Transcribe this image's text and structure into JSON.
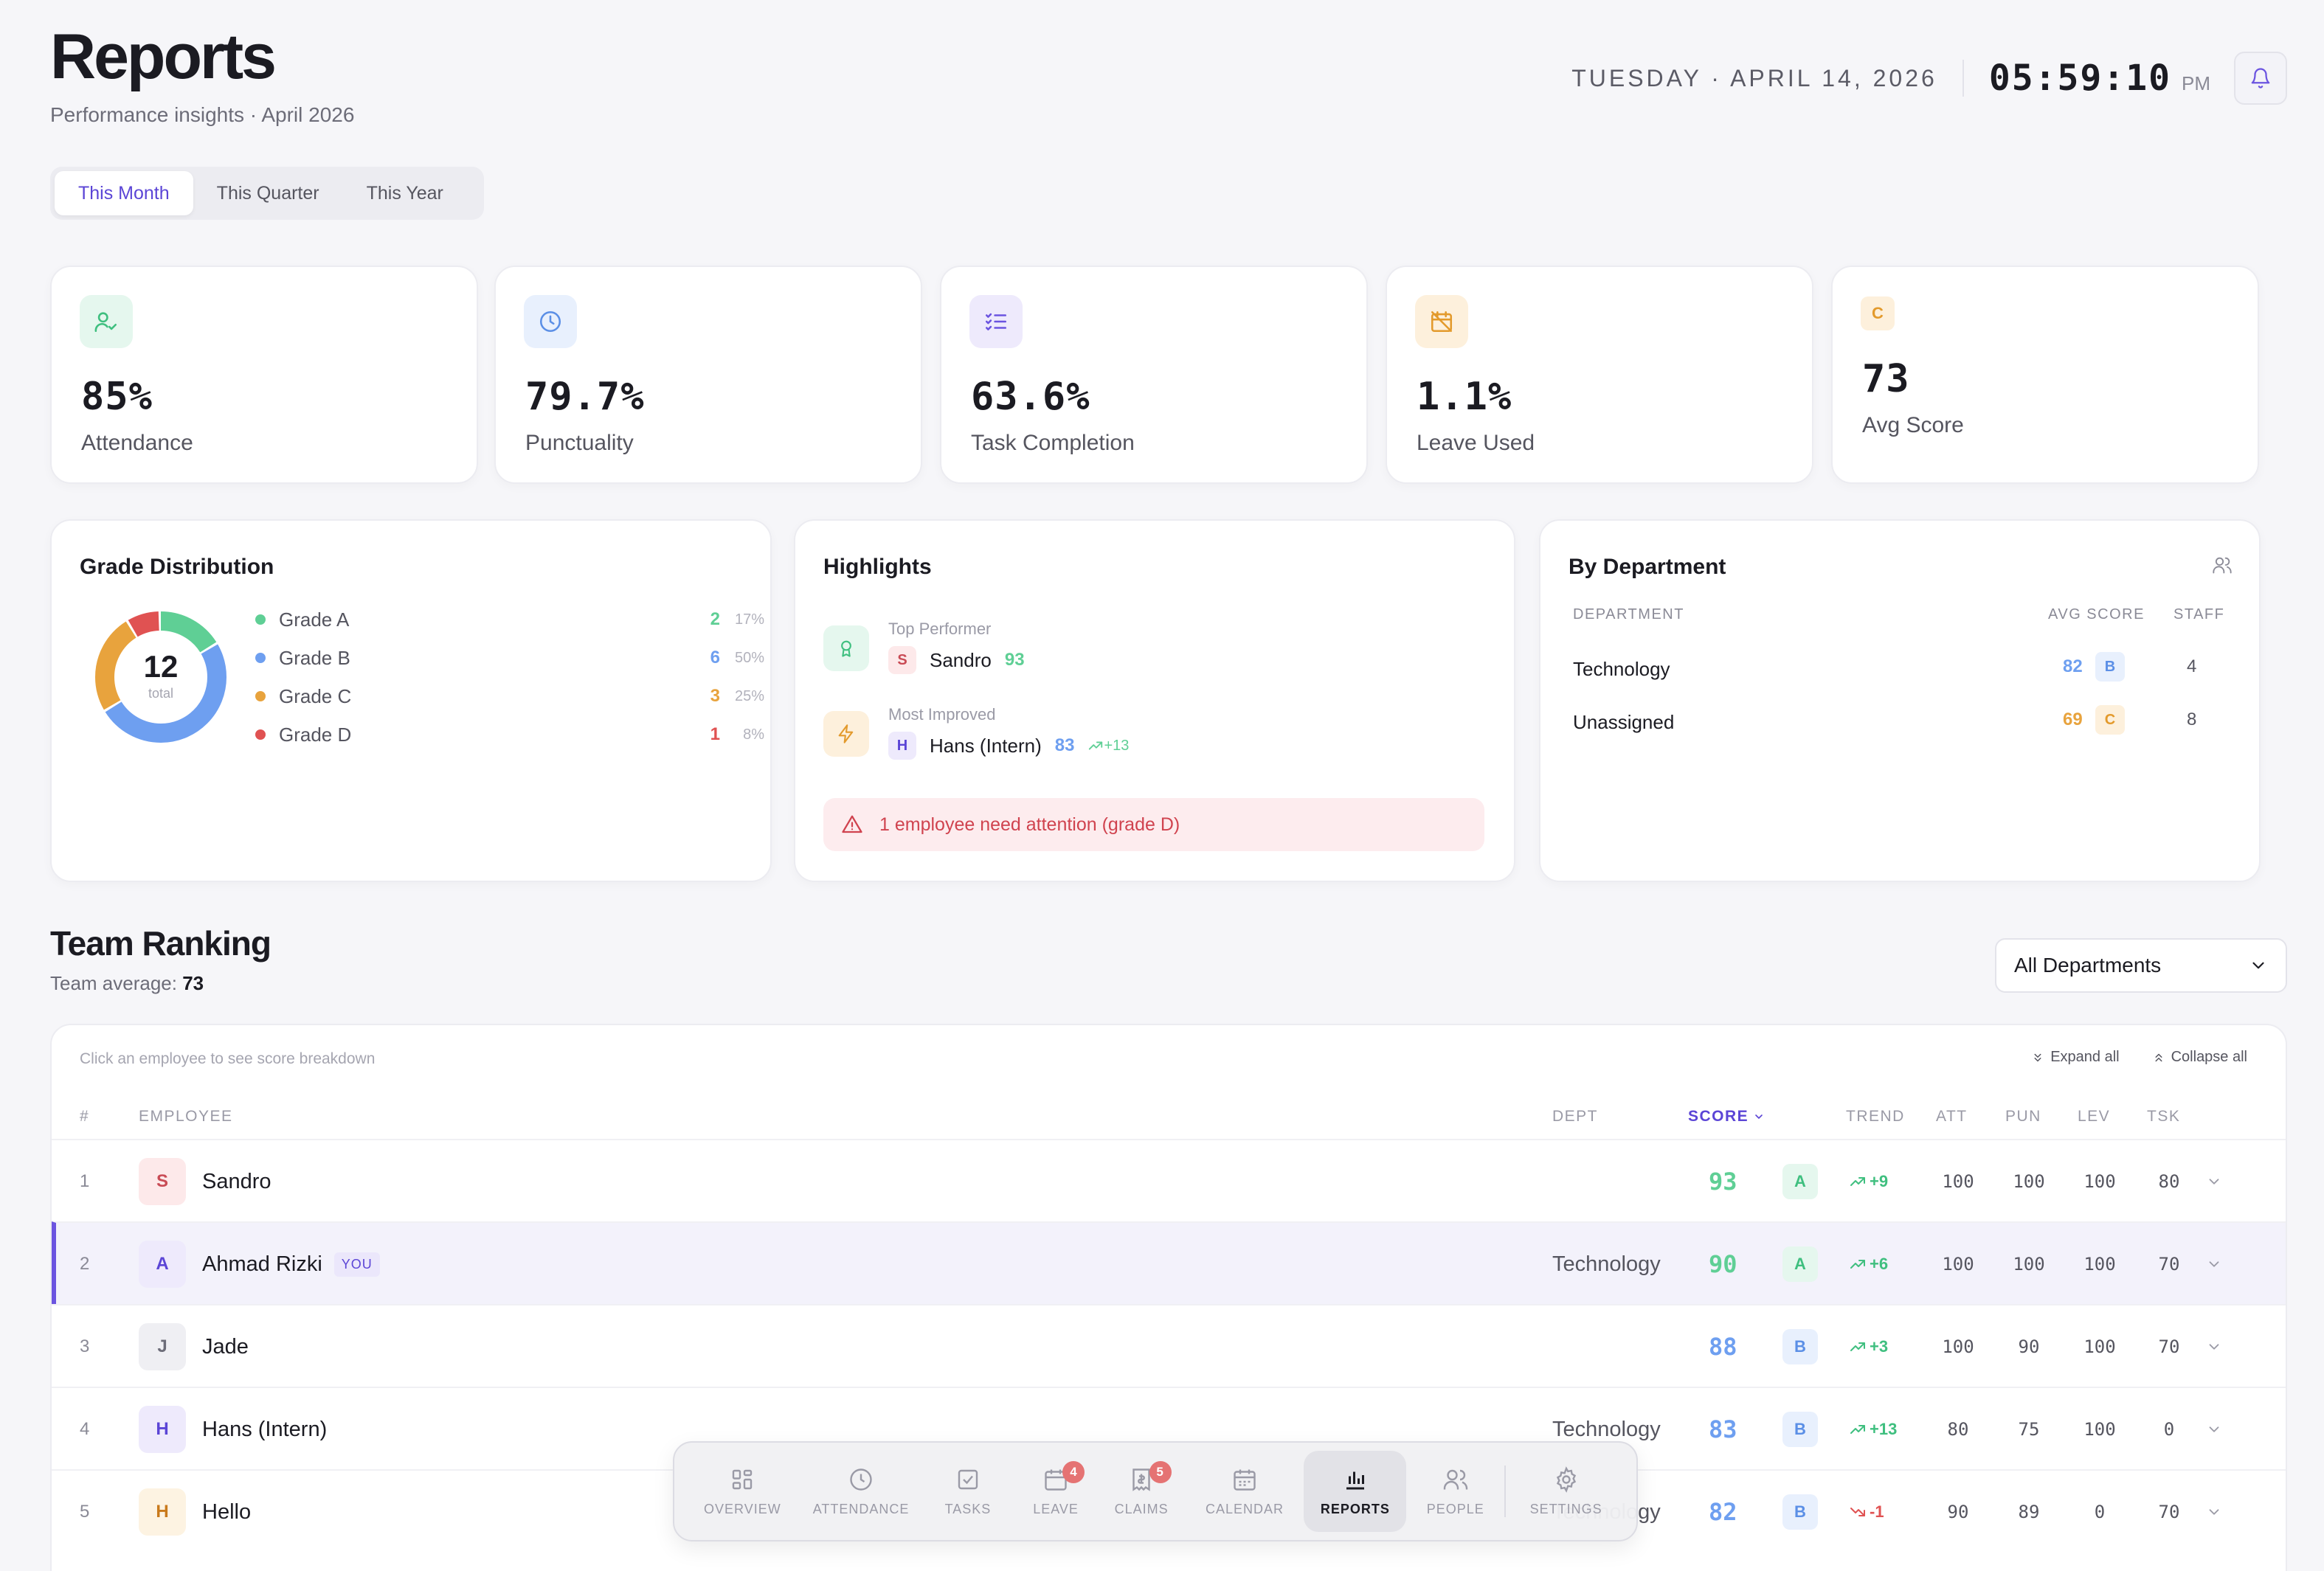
{
  "header": {
    "title": "Reports",
    "subtitle": "Performance insights · April 2026",
    "date": "TUESDAY · APRIL 14, 2026",
    "time": "05:59:10",
    "ampm": "PM"
  },
  "period_tabs": [
    {
      "label": "This Month",
      "active": true
    },
    {
      "label": "This Quarter",
      "active": false
    },
    {
      "label": "This Year",
      "active": false
    }
  ],
  "stats": [
    {
      "value": "85%",
      "label": "Attendance",
      "icon": "user-check-icon"
    },
    {
      "value": "79.7%",
      "label": "Punctuality",
      "icon": "clock-icon"
    },
    {
      "value": "63.6%",
      "label": "Task Completion",
      "icon": "list-check-icon"
    },
    {
      "value": "1.1%",
      "label": "Leave Used",
      "icon": "calendar-off-icon"
    },
    {
      "value": "73",
      "label": "Avg Score",
      "grade": "C"
    }
  ],
  "grade_distribution": {
    "title": "Grade Distribution",
    "total": "12",
    "total_label": "total",
    "grades": [
      {
        "label": "Grade A",
        "count": "2",
        "pct": "17%",
        "color": "#5fcf95"
      },
      {
        "label": "Grade B",
        "count": "6",
        "pct": "50%",
        "color": "#6e9ff0"
      },
      {
        "label": "Grade C",
        "count": "3",
        "pct": "25%",
        "color": "#e8a33d"
      },
      {
        "label": "Grade D",
        "count": "1",
        "pct": "8%",
        "color": "#e05252"
      }
    ]
  },
  "highlights": {
    "title": "Highlights",
    "top_performer": {
      "caption": "Top Performer",
      "initial": "S",
      "name": "Sandro",
      "score": "93"
    },
    "most_improved": {
      "caption": "Most Improved",
      "initial": "H",
      "name": "Hans (Intern)",
      "score": "83",
      "delta": "+13"
    },
    "alert": "1 employee need attention (grade D)"
  },
  "by_department": {
    "title": "By Department",
    "headers": {
      "department": "DEPARTMENT",
      "avg_score": "AVG SCORE",
      "staff": "STAFF"
    },
    "rows": [
      {
        "name": "Technology",
        "score": "82",
        "grade": "B",
        "staff": "4"
      },
      {
        "name": "Unassigned",
        "score": "69",
        "grade": "C",
        "staff": "8"
      }
    ]
  },
  "team_ranking": {
    "title": "Team Ranking",
    "avg_label": "Team average:",
    "avg_value": "73",
    "filter": "All Departments",
    "hint": "Click an employee to see score breakdown",
    "expand_all": "Expand all",
    "collapse_all": "Collapse all",
    "columns": {
      "rank": "#",
      "employee": "EMPLOYEE",
      "dept": "DEPT",
      "score": "SCORE",
      "trend": "TREND",
      "att": "ATT",
      "pun": "PUN",
      "lev": "LEV",
      "tsk": "TSK"
    },
    "rows": [
      {
        "rank": "1",
        "initial": "S",
        "name": "Sandro",
        "you": "",
        "dept": "",
        "score": "93",
        "grade": "A",
        "trend": "+9",
        "att": "100",
        "pun": "100",
        "lev": "100",
        "tsk": "80"
      },
      {
        "rank": "2",
        "initial": "A",
        "name": "Ahmad Rizki",
        "you": "YOU",
        "dept": "Technology",
        "score": "90",
        "grade": "A",
        "trend": "+6",
        "att": "100",
        "pun": "100",
        "lev": "100",
        "tsk": "70"
      },
      {
        "rank": "3",
        "initial": "J",
        "name": "Jade",
        "you": "",
        "dept": "",
        "score": "88",
        "grade": "B",
        "trend": "+3",
        "att": "100",
        "pun": "90",
        "lev": "100",
        "tsk": "70"
      },
      {
        "rank": "4",
        "initial": "H",
        "name": "Hans (Intern)",
        "you": "",
        "dept": "Technology",
        "score": "83",
        "grade": "B",
        "trend": "+13",
        "att": "80",
        "pun": "75",
        "lev": "100",
        "tsk": "0"
      },
      {
        "rank": "5",
        "initial": "H",
        "name": "Hello",
        "you": "",
        "dept": "Technology",
        "score": "82",
        "grade": "B",
        "trend": "-1",
        "att": "90",
        "pun": "89",
        "lev": "0",
        "tsk": "70"
      }
    ]
  },
  "bottom_nav": [
    {
      "label": "OVERVIEW",
      "icon": "grid-icon"
    },
    {
      "label": "ATTENDANCE",
      "icon": "clock-icon"
    },
    {
      "label": "TASKS",
      "icon": "checkbox-icon"
    },
    {
      "label": "LEAVE",
      "icon": "calendar-icon",
      "badge": "4"
    },
    {
      "label": "CLAIMS",
      "icon": "receipt-icon",
      "badge": "5"
    },
    {
      "label": "CALENDAR",
      "icon": "calendar-grid-icon"
    },
    {
      "label": "REPORTS",
      "icon": "bar-chart-icon",
      "active": true
    },
    {
      "label": "PEOPLE",
      "icon": "people-icon"
    },
    {
      "label": "SETTINGS",
      "icon": "gear-icon"
    }
  ]
}
